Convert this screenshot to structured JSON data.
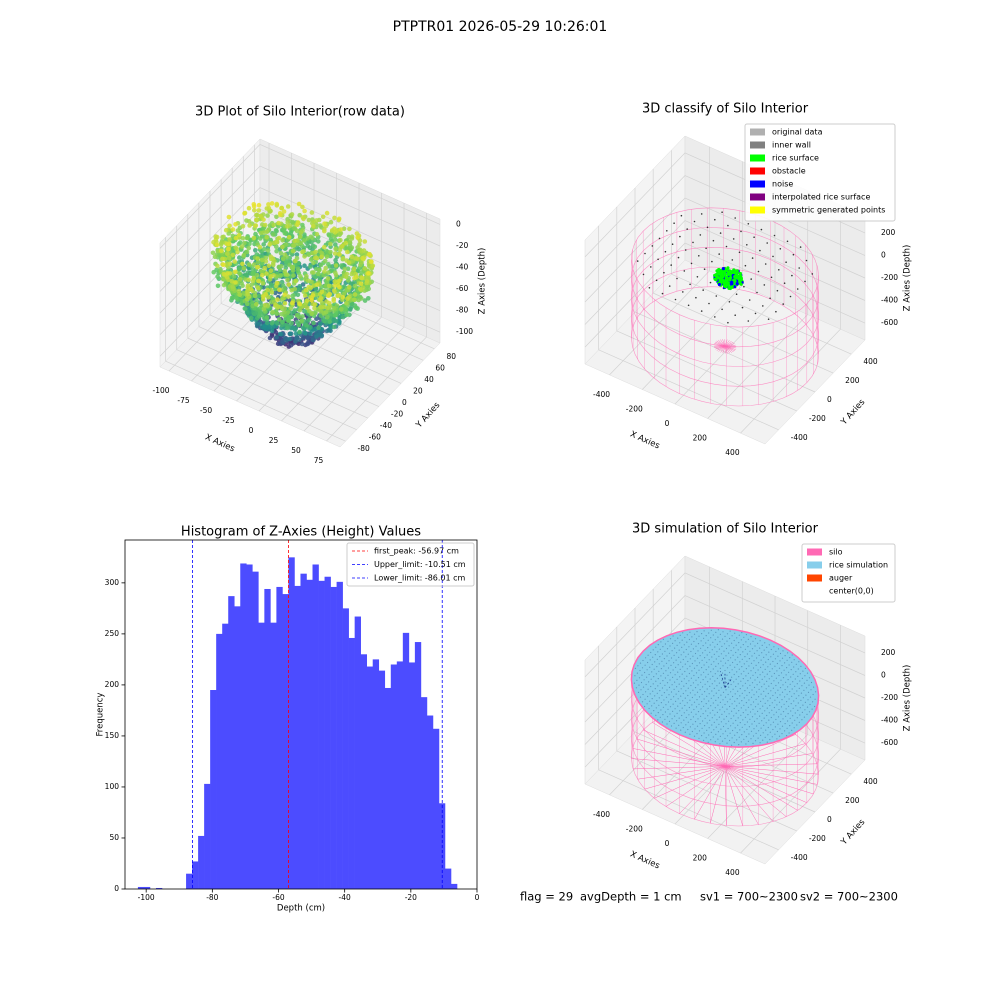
{
  "title": "PTPTR01 2026-05-29 10:26:01",
  "chart_data": [
    {
      "type": "scatter3d",
      "title": "3D Plot of Silo Interior(row data)",
      "xlabel": "X Axies",
      "ylabel": "Y Axies",
      "zlabel": "Z Axies (Depth)",
      "xlim": [
        -110,
        90
      ],
      "ylim": [
        -90,
        90
      ],
      "zlim": [
        -110,
        5
      ],
      "xticks": [
        -100,
        -75,
        -50,
        -25,
        0,
        25,
        50,
        75
      ],
      "yticks": [
        -80,
        -60,
        -40,
        -20,
        0,
        20,
        40,
        60,
        80
      ],
      "zticks": [
        -100,
        -80,
        -60,
        -40,
        -20,
        0
      ],
      "colormap": "viridis"
    },
    {
      "type": "classify3d",
      "title": "3D classify of Silo Interior",
      "xlabel": "X Axies",
      "ylabel": "Y Axies",
      "zlabel": "Z Axies (Depth)",
      "xlim": [
        -550,
        550
      ],
      "ylim": [
        -550,
        550
      ],
      "zlim": [
        -750,
        350
      ],
      "xticks": [
        -400,
        -200,
        0,
        200,
        400
      ],
      "yticks": [
        -400,
        -200,
        0,
        200,
        400
      ],
      "zticks": [
        -600,
        -400,
        -200,
        0,
        200
      ],
      "legend": "upper right",
      "series": [
        {
          "name": "original data",
          "color": "#b0b0b0"
        },
        {
          "name": "inner wall",
          "color": "#808080"
        },
        {
          "name": "rice surface",
          "color": "#00ff00"
        },
        {
          "name": "obstacle",
          "color": "#ff0000"
        },
        {
          "name": "noise",
          "color": "#0000ff"
        },
        {
          "name": "interpolated rice surface",
          "color": "#800080"
        },
        {
          "name": "symmetric generated points",
          "color": "#ffff00"
        }
      ]
    },
    {
      "type": "histogram",
      "title": "Histogram of Z-Axies (Height) Values",
      "xlabel": "Depth (cm)",
      "ylabel": "Frequency",
      "color": "#4c4cff",
      "xlim": [
        -106.4,
        0
      ],
      "ylim": [
        0,
        342
      ],
      "xticks": [
        -100,
        -80,
        -60,
        -40,
        -20,
        0
      ],
      "yticks": [
        0,
        50,
        100,
        150,
        200,
        250,
        300
      ],
      "bins": [
        -102.5,
        -100.68,
        -98.86,
        -97.04,
        -95.22,
        -93.4,
        -91.58,
        -89.76,
        -87.94,
        -86.12,
        -84.3,
        -82.48,
        -80.66,
        -78.84,
        -77.02,
        -75.2,
        -73.38,
        -71.56,
        -69.74,
        -67.92,
        -66.1,
        -64.28,
        -62.46,
        -60.64,
        -58.82,
        -57.0,
        -55.18,
        -53.36,
        -51.54,
        -49.72,
        -47.9,
        -46.08,
        -44.26,
        -42.44,
        -40.62,
        -38.8,
        -36.98,
        -35.16,
        -33.34,
        -31.52,
        -29.7,
        -27.88,
        -26.06,
        -24.24,
        -22.42,
        -20.6,
        -18.78,
        -16.96,
        -15.14,
        -13.32,
        -11.5,
        -9.68,
        -7.86,
        -6.04
      ],
      "counts": [
        2,
        2,
        0,
        1,
        0,
        0,
        0,
        0,
        15,
        27,
        52,
        103,
        195,
        250,
        260,
        287,
        277,
        319,
        318,
        311,
        261,
        294,
        261,
        296,
        289,
        325,
        297,
        309,
        303,
        318,
        302,
        306,
        296,
        301,
        275,
        246,
        267,
        230,
        218,
        225,
        214,
        197,
        220,
        223,
        251,
        222,
        242,
        188,
        170,
        157,
        84,
        20,
        5
      ],
      "legend": "upper right",
      "vlines": [
        {
          "value": -56.97,
          "label": "first_peak: -56.97 cm",
          "color": "#ff0000"
        },
        {
          "value": -10.51,
          "label": "Upper_limit: -10.51 cm",
          "color": "#0000ff"
        },
        {
          "value": -86.01,
          "label": "Lower_limit: -86.01 cm",
          "color": "#0000ff"
        }
      ]
    },
    {
      "type": "simulation3d",
      "title": "3D simulation of Silo Interior",
      "xlabel": "X Axies",
      "ylabel": "Y Axies",
      "zlabel": "Z Axies (Depth)",
      "xlim": [
        -550,
        550
      ],
      "ylim": [
        -550,
        550
      ],
      "zlim": [
        -750,
        350
      ],
      "xticks": [
        -400,
        -200,
        0,
        200,
        400
      ],
      "yticks": [
        -400,
        -200,
        0,
        200,
        400
      ],
      "zticks": [
        -600,
        -400,
        -200,
        0,
        200
      ],
      "legend": "upper right",
      "series": [
        {
          "name": "silo",
          "color": "#ff69b4"
        },
        {
          "name": "rice simulation",
          "color": "#87ceeb"
        },
        {
          "name": "auger",
          "color": "#ff4500"
        },
        {
          "name": "center(0,0)",
          "color": "#ffffff"
        }
      ]
    }
  ],
  "status": [
    "flag = 29",
    "avgDepth = 1 cm",
    "sv1 = 700~2300",
    "sv2 = 700~2300"
  ]
}
